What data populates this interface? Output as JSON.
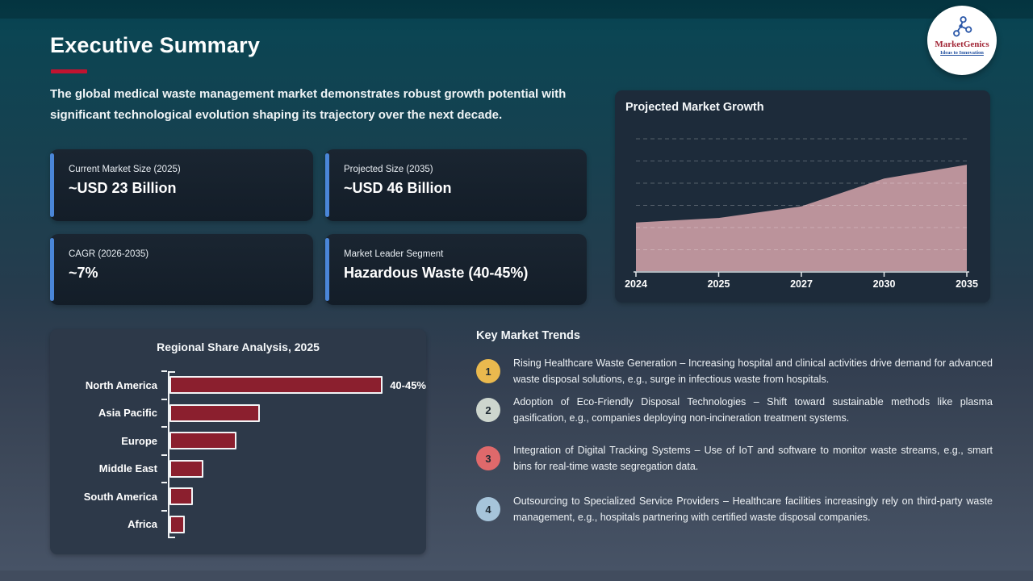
{
  "slide": {
    "title": "Executive Summary",
    "intro": "The global medical waste management market demonstrates robust growth potential with significant technological evolution shaping its trajectory over the next decade.",
    "accent_red": "#c11330",
    "accent_blue": "#4a86d8"
  },
  "logo": {
    "name": "MarketGenics",
    "tagline": "Ideas to Innovation"
  },
  "stat_cards": [
    {
      "label": "Current Market Size (2025)",
      "value": "~USD 23 Billion"
    },
    {
      "label": "Projected Size (2035)",
      "value": "~USD 46 Billion"
    },
    {
      "label": "CAGR (2026-2035)",
      "value": "~7%"
    },
    {
      "label": "Market Leader Segment",
      "value": "Hazardous Waste (40-45%)"
    }
  ],
  "growth_panel": {
    "title": "Projected Market Growth"
  },
  "regional_panel": {
    "title": "Regional Share Analysis, 2025"
  },
  "trends": {
    "title": "Key Market Trends",
    "items": [
      {
        "num": "1",
        "color": "#eab94e",
        "text": "Rising Healthcare Waste Generation – Increasing hospital and clinical activities drive demand for advanced waste disposal solutions, e.g., surge in infectious waste from hospitals."
      },
      {
        "num": "2",
        "color": "#cdd6ce",
        "text": "Adoption of Eco-Friendly Disposal Technologies – Shift toward sustainable methods like plasma gasification, e.g., companies deploying non-incineration treatment systems."
      },
      {
        "num": "3",
        "color": "#df696b",
        "text": "Integration of Digital Tracking Systems – Use of IoT and software to monitor waste streams, e.g., smart bins for real-time waste segregation data."
      },
      {
        "num": "4",
        "color": "#a6c4da",
        "text": "Outsourcing to Specialized Service Providers – Healthcare facilities increasingly rely on third-party waste management, e.g., hospitals partnering with certified waste disposal companies."
      }
    ]
  },
  "chart_data": [
    {
      "type": "area",
      "title": "Projected Market Growth",
      "x": [
        "2024",
        "2025",
        "2027",
        "2030",
        "2035"
      ],
      "values": [
        21,
        23,
        28,
        40,
        46
      ],
      "unit": "USD Billion (estimated from plot; y-axis unlabeled)",
      "ylim": [
        0,
        60
      ],
      "fill_color": "#bb939b",
      "gridlines": "dashed horizontal, no y tick labels",
      "x_note": "ticks equally spaced despite uneven year gaps",
      "legend": "none"
    },
    {
      "type": "bar",
      "title": "Regional Share Analysis, 2025",
      "orientation": "horizontal",
      "categories": [
        "North America",
        "Asia Pacific",
        "Europe",
        "Middle East",
        "South America",
        "Africa"
      ],
      "values": [
        42.5,
        17.5,
        13,
        6.5,
        4.5,
        3
      ],
      "unit": "% market share (estimated; only North America labeled)",
      "xlim": [
        0,
        50
      ],
      "bar_color": "#8b1f2e",
      "data_labels": {
        "North America": "40-45%"
      },
      "legend": "none"
    }
  ]
}
